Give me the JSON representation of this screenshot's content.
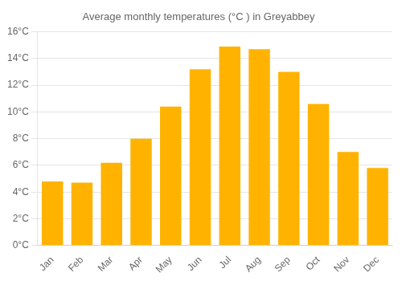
{
  "chart_data": {
    "type": "bar",
    "title": "Average monthly temperatures (°C ) in Greyabbey",
    "categories": [
      "Jan",
      "Feb",
      "Mar",
      "Apr",
      "May",
      "Jun",
      "Jul",
      "Aug",
      "Sep",
      "Oct",
      "Nov",
      "Dec"
    ],
    "values": [
      4.8,
      4.7,
      6.2,
      8.0,
      10.4,
      13.2,
      14.9,
      14.7,
      13.0,
      10.6,
      7.0,
      5.8
    ],
    "color": "#FFB300",
    "ylim": [
      0,
      16
    ],
    "yticks": [
      {
        "value": 0,
        "label": "0°C"
      },
      {
        "value": 2,
        "label": "2°C"
      },
      {
        "value": 4,
        "label": "4°C"
      },
      {
        "value": 6,
        "label": "6°C"
      },
      {
        "value": 8,
        "label": "8°C"
      },
      {
        "value": 10,
        "label": "10°C"
      },
      {
        "value": 12,
        "label": "12°C"
      },
      {
        "value": 14,
        "label": "14°C"
      },
      {
        "value": 16,
        "label": "16°C"
      }
    ],
    "grid": true
  }
}
